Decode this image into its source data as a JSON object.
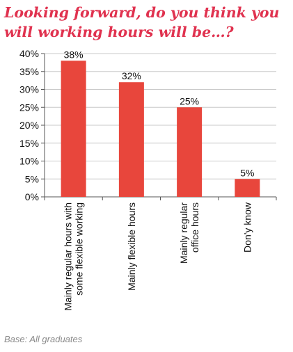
{
  "chart_data": {
    "type": "bar",
    "title": "Looking forward, do you think you will working hours will be…?",
    "footnote": "Base: All graduates",
    "categories": [
      [
        "Mainly regular hours with",
        "some flexible working"
      ],
      [
        "Mainly flexible hours"
      ],
      [
        "Mainly regular",
        "office hours"
      ],
      [
        "Don'y know"
      ]
    ],
    "values": [
      38,
      32,
      25,
      5
    ],
    "data_labels": [
      "38%",
      "32%",
      "25%",
      "5%"
    ],
    "ylim": [
      0,
      40
    ],
    "yticks": [
      0,
      5,
      10,
      15,
      20,
      25,
      30,
      35,
      40
    ],
    "ytick_labels": [
      "0%",
      "5%",
      "10%",
      "15%",
      "20%",
      "25%",
      "30%",
      "35%",
      "40%"
    ],
    "xlabel": "",
    "ylabel": "",
    "grid": true,
    "bar_color": "#e8463c",
    "grid_color": "#c8c8c8",
    "title_color": "#e0324f"
  }
}
